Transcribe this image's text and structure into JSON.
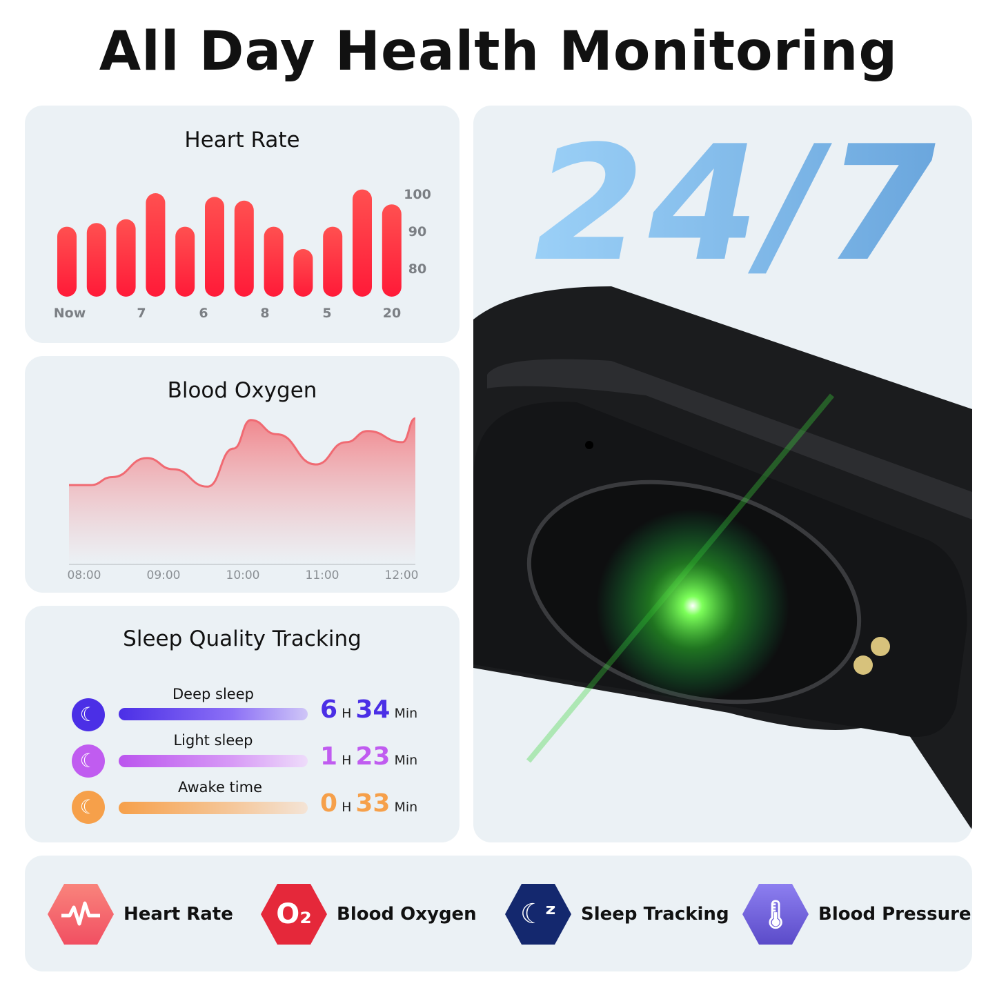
{
  "title": "All Day Health Monitoring",
  "heart_rate": {
    "title": "Heart Rate",
    "chart_data": {
      "type": "bar",
      "values": [
        91,
        92,
        93,
        100,
        91,
        99,
        98,
        91,
        85,
        91,
        101,
        97
      ],
      "x_tick_labels": [
        "Now",
        "7",
        "6",
        "8",
        "5",
        "20"
      ],
      "y_tick_labels": [
        "100",
        "90",
        "80"
      ],
      "yticks": [
        100,
        90,
        80
      ],
      "color": "#ff2a3f"
    }
  },
  "blood_oxygen": {
    "title": "Blood Oxygen",
    "chart_data": {
      "type": "area",
      "x_tick_labels": [
        "08:00",
        "09:00",
        "10:00",
        "11:00",
        "12:00"
      ],
      "x": [
        8.0,
        8.25,
        8.5,
        8.9,
        9.2,
        9.6,
        9.9,
        10.1,
        10.4,
        10.85,
        11.2,
        11.45,
        11.85,
        12.0
      ],
      "values": [
        50,
        50,
        55,
        67,
        60,
        49,
        73,
        91,
        82,
        63,
        77,
        84,
        77,
        92
      ],
      "color": "#f06a72"
    }
  },
  "sleep": {
    "title": "Sleep Quality Tracking",
    "rows": [
      {
        "label": "Deep sleep",
        "hours": "6",
        "h": "H",
        "minutes": "34",
        "min": "Min",
        "color": "#4b2fe6"
      },
      {
        "label": "Light sleep",
        "hours": "1",
        "h": "H",
        "minutes": "23",
        "min": "Min",
        "color": "#c05cf0"
      },
      {
        "label": "Awake time",
        "hours": "0",
        "h": "H",
        "minutes": "33",
        "min": "Min",
        "color": "#f6a04a"
      }
    ]
  },
  "hero": {
    "text": "24/7"
  },
  "features": [
    {
      "label": "Heart Rate",
      "icon": "heartbeat-icon",
      "color": "#f4626a"
    },
    {
      "label": "Blood Oxygen",
      "icon": "o2-icon",
      "glyph": "O₂",
      "color": "#e5283a"
    },
    {
      "label": "Sleep Tracking",
      "icon": "moon-zz-icon",
      "color": "#14286e"
    },
    {
      "label": "Blood Pressure",
      "icon": "thermometer-icon",
      "color": "#6c5ad8"
    }
  ]
}
